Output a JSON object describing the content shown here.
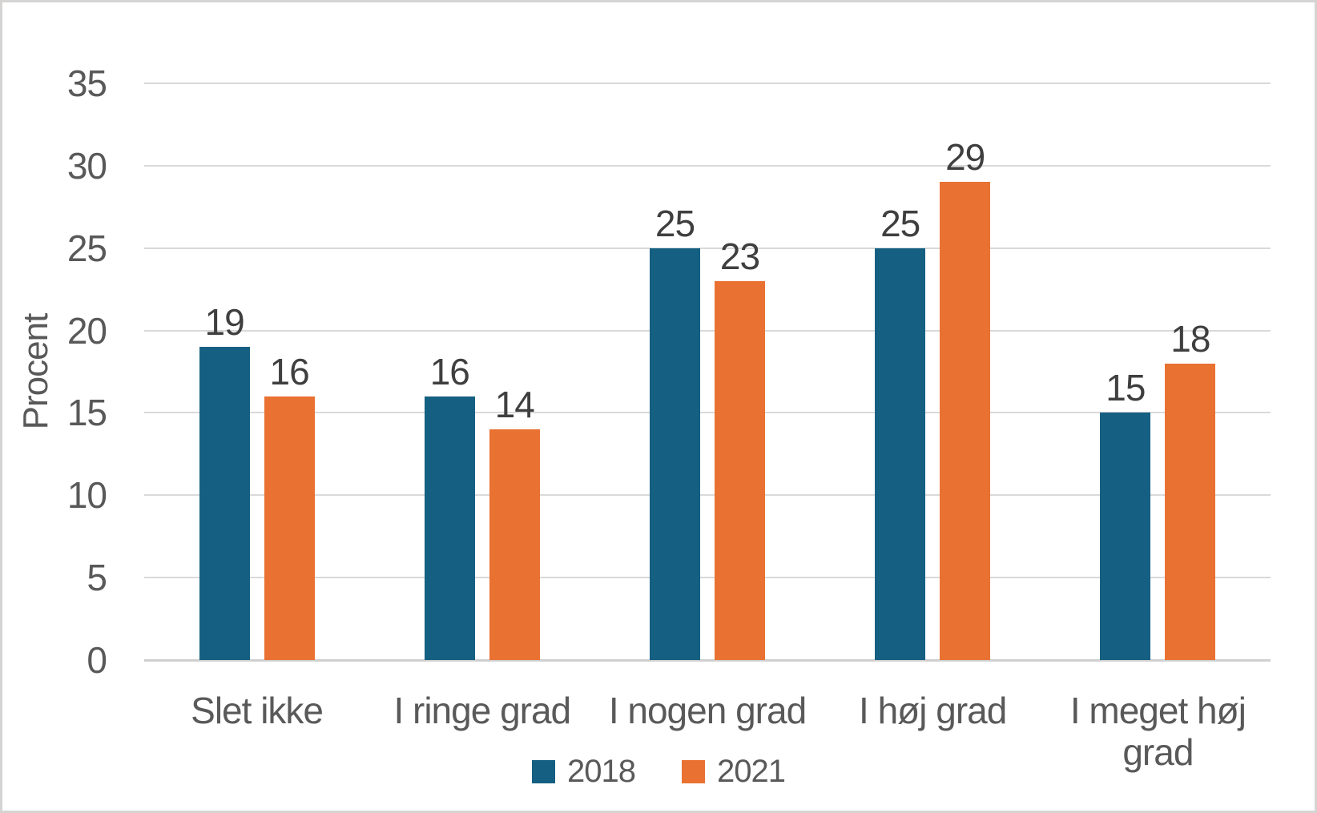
{
  "chart_data": {
    "type": "bar",
    "title": "",
    "xlabel": "",
    "ylabel": "Procent",
    "categories": [
      "Slet ikke",
      "I ringe grad",
      "I nogen grad",
      "I høj grad",
      "I meget høj grad"
    ],
    "series": [
      {
        "name": "2018",
        "color": "#156082",
        "values": [
          19,
          16,
          25,
          25,
          15
        ]
      },
      {
        "name": "2021",
        "color": "#E97132",
        "values": [
          16,
          14,
          23,
          29,
          18
        ]
      }
    ],
    "ylim": [
      0,
      35
    ],
    "ytick_step": 5,
    "grid": true,
    "legend_position": "bottom",
    "data_labels": true
  },
  "colors": {
    "series_2018": "#156082",
    "series_2021": "#E97132",
    "gridline": "#d9d9d9",
    "axis_text": "#595959",
    "data_label_text": "#3f3f3f"
  }
}
